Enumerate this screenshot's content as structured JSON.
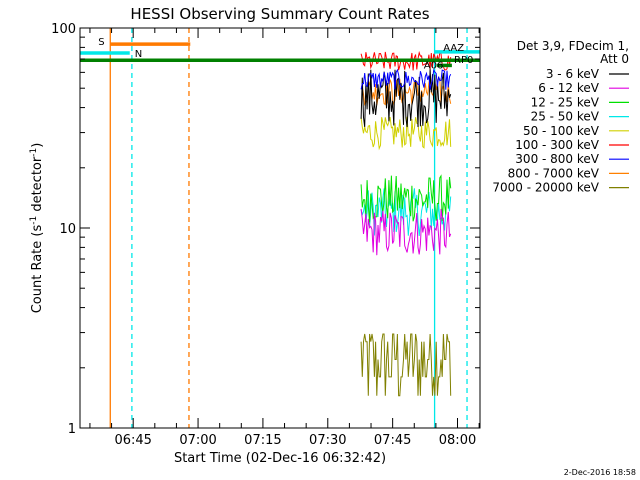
{
  "chart_data": {
    "type": "line",
    "title": "HESSI Observing Summary Count Rates",
    "xlabel": "Start Time (02-Dec-16 06:32:42)",
    "ylabel_main": "Count Rate (s",
    "ylabel_sup1": "-1",
    "ylabel_mid": " detector",
    "ylabel_sup2": "-1",
    "ylabel_end": ")",
    "y_scale": "log",
    "ylim": [
      1,
      100
    ],
    "xlim_minutes": [
      0,
      92.5
    ],
    "x_ticks": [
      {
        "label": "06:45",
        "t": 12.3
      },
      {
        "label": "07:00",
        "t": 27.3
      },
      {
        "label": "07:15",
        "t": 42.3
      },
      {
        "label": "07:30",
        "t": 57.3
      },
      {
        "label": "07:45",
        "t": 72.3
      },
      {
        "label": "08:00",
        "t": 87.3
      }
    ],
    "y_tick_labels": [
      {
        "label": "100",
        "v": 100
      },
      {
        "label": "10",
        "v": 10
      },
      {
        "label": "1",
        "v": 1
      }
    ],
    "legend_header": [
      "Det 3,9, FDecim 1,",
      "Att 0"
    ],
    "legend_placement": "right",
    "series": [
      {
        "name": "3 - 6 keV",
        "color": "#000000",
        "level": 45,
        "spread": 0.15
      },
      {
        "name": "6 - 12 keV",
        "color": "#e000e0",
        "level": 9.5,
        "spread": 0.12
      },
      {
        "name": "12 - 25 keV",
        "color": "#00e000",
        "level": 14,
        "spread": 0.12
      },
      {
        "name": "25 - 50 keV",
        "color": "#00e8e8",
        "level": 12,
        "spread": 0.12
      },
      {
        "name": "50 - 100 keV",
        "color": "#d0d000",
        "level": 30,
        "spread": 0.08
      },
      {
        "name": "100 - 300 keV",
        "color": "#ff0000",
        "level": 68,
        "spread": 0.05
      },
      {
        "name": "300 - 800 keV",
        "color": "#0000ff",
        "level": 55,
        "spread": 0.05
      },
      {
        "name": "800 - 7000 keV",
        "color": "#ff8000",
        "level": 48,
        "spread": 0.07
      },
      {
        "name": "7000 - 20000 keV",
        "color": "#808000",
        "level": 2,
        "spread": 0.45
      }
    ],
    "data_interval_minutes": [
      65,
      86
    ],
    "flags": [
      {
        "label": "S",
        "color": "#ff7a00",
        "t_start": 7,
        "t_end": 25.5,
        "value": 83
      },
      {
        "label": "N",
        "color": "#00e8e8",
        "t_start": 0,
        "t_end": 11.5,
        "value": 75
      },
      {
        "label": "AAZ",
        "color": "#00e8e8",
        "t_start": 82,
        "t_end": 92.5,
        "value": 76
      },
      {
        "label": "RP0",
        "color": "#008000",
        "t_start": 0,
        "t_end": 92.5,
        "value": 69
      },
      {
        "label": "A06",
        "color": "#008000",
        "t_start": 82.5,
        "t_end": 86,
        "value": 65
      }
    ],
    "vertical_lines": [
      {
        "t": 7.0,
        "color": "#ff7a00",
        "style": "solid"
      },
      {
        "t": 12.0,
        "color": "#00e8e8",
        "style": "dashed"
      },
      {
        "t": 25.2,
        "color": "#ff7a00",
        "style": "dashed"
      },
      {
        "t": 82.0,
        "color": "#00e8e8",
        "style": "solid"
      },
      {
        "t": 89.5,
        "color": "#00e8e8",
        "style": "dashed"
      }
    ],
    "grid": false
  },
  "footer_timestamp": "2-Dec-2016 18:58"
}
